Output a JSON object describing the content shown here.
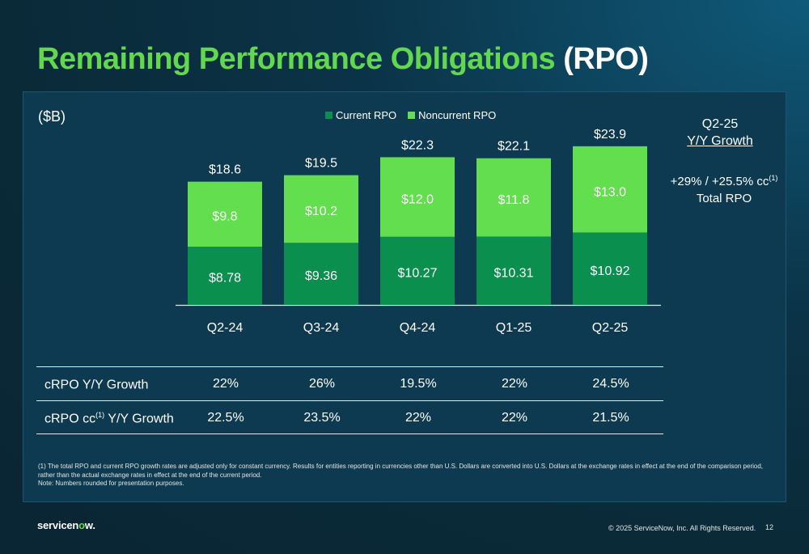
{
  "slide": {
    "title_green": "Remaining Performance Obligations",
    "title_white": "(RPO)",
    "unit_label": "($B)",
    "page_number": "12",
    "copyright": "© 2025 ServiceNow, Inc. All Rights Reserved.",
    "logo_text_a": "servicen",
    "logo_text_o": "o",
    "logo_text_b": "w."
  },
  "colors": {
    "current_rpo": "#0a8f4e",
    "noncurrent_rpo": "#62de4f",
    "title_green": "#62d84e"
  },
  "chart_data": {
    "type": "bar",
    "stacked": true,
    "categories": [
      "Q2-24",
      "Q3-24",
      "Q4-24",
      "Q1-25",
      "Q2-25"
    ],
    "series": [
      {
        "name": "Current RPO",
        "values": [
          8.78,
          9.36,
          10.27,
          10.31,
          10.92
        ],
        "labels": [
          "$8.78",
          "$9.36",
          "$10.27",
          "$10.31",
          "$10.92"
        ]
      },
      {
        "name": "Noncurrent RPO",
        "values": [
          9.8,
          10.2,
          12.0,
          11.8,
          13.0
        ],
        "labels": [
          "$9.8",
          "$10.2",
          "$12.0",
          "$11.8",
          "$13.0"
        ]
      }
    ],
    "totals": [
      18.6,
      19.5,
      22.3,
      22.1,
      23.9
    ],
    "total_labels": [
      "$18.6",
      "$19.5",
      "$22.3",
      "$22.1",
      "$23.9"
    ],
    "legend_position": "top",
    "grid": false
  },
  "side_panel": {
    "heading_line1": "Q2-25",
    "heading_line2": "Y/Y Growth",
    "total_growth": "+29% / +25.5% cc",
    "total_growth_sup": "(1)",
    "total_label": "Total RPO"
  },
  "table": {
    "rows": [
      {
        "label": "cRPO Y/Y Growth",
        "label_sup": "",
        "label_after": "",
        "values": [
          "22%",
          "26%",
          "19.5%",
          "22%",
          "24.5%"
        ]
      },
      {
        "label": "cRPO cc",
        "label_sup": "(1)",
        "label_after": " Y/Y Growth",
        "values": [
          "22.5%",
          "23.5%",
          "22%",
          "22%",
          "21.5%"
        ]
      }
    ]
  },
  "footnote": {
    "line1": "(1) The total RPO and current RPO growth rates are adjusted only for constant currency. Results for entities reporting in currencies other than U.S. Dollars are converted into U.S. Dollars at the exchange rates in effect at the end of the comparison period, rather than the actual exchange rates in effect at the end of the current period.",
    "line2": "Note: Numbers rounded for presentation purposes."
  }
}
